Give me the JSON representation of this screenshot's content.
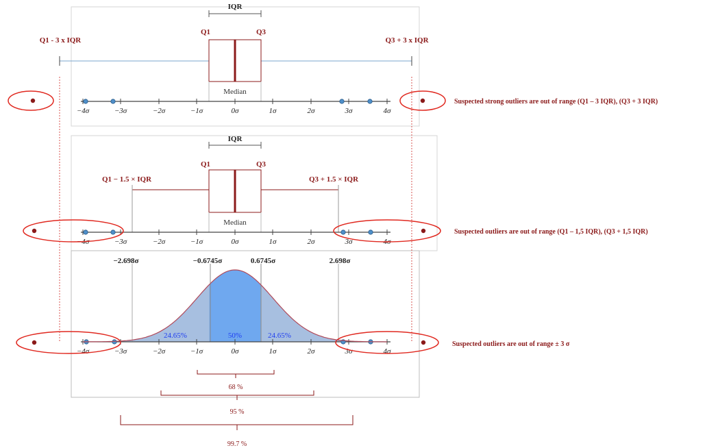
{
  "panel1": {
    "iqr_label": "IQR",
    "q1_label": "Q1",
    "q3_label": "Q3",
    "median_label": "Median",
    "left_fence_label": "Q1 - 3 x IQR",
    "right_fence_label": "Q3 + 3 x IQR",
    "note": "Suspected strong outliers are out of range  (Q1 – 3 IQR), (Q3 + 3 IQR)"
  },
  "panel2": {
    "iqr_label": "IQR",
    "q1_label": "Q1",
    "q3_label": "Q3",
    "median_label": "Median",
    "left_fence_label": "Q1 − 1.5 × IQR",
    "right_fence_label": "Q3 + 1.5 × IQR",
    "note": "Suspected outliers are out of range  (Q1 – 1,5 IQR), (Q3 + 1,5 IQR)"
  },
  "panel3": {
    "quantile_labels": [
      "−2.698σ",
      "−0.6745σ",
      "0.6745σ",
      "2.698σ"
    ],
    "area_labels": [
      "24.65%",
      "50%",
      "24.65%"
    ],
    "note": "Suspected outliers are out of range ± 3 σ"
  },
  "axis_ticks": [
    "−4σ",
    "−3σ",
    "−2σ",
    "−1σ",
    "0σ",
    "1σ",
    "2σ",
    "3σ",
    "4σ"
  ],
  "brackets": [
    "68 %",
    "95 %",
    "99.7 %"
  ],
  "colors": {
    "dark_red": "#8b1a1a",
    "ellipse_red": "#e0281f",
    "curve_fill": "#a7bfe0",
    "center_fill": "#6fa8ef",
    "blue_text": "#1f3df0",
    "whisker_blue": "#7aa6cc",
    "dot_blue": "#4f8fc9"
  }
}
